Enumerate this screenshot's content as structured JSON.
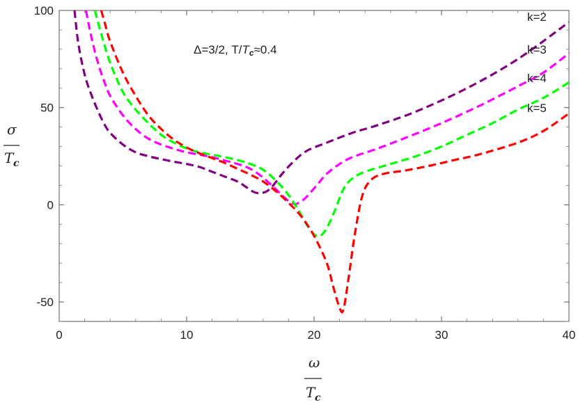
{
  "chart_data": {
    "type": "line",
    "title": "",
    "annotation": {
      "prefix": "Δ=3/2,  T/",
      "t_sym": "T",
      "t_sub": "c",
      "suffix": "≈0.4"
    },
    "xlabel": {
      "numerator": "ω",
      "denominator": "T",
      "denominator_sub": "c"
    },
    "ylabel": {
      "numerator": "σ",
      "denominator": "T",
      "denominator_sub": "c"
    },
    "xlim": [
      0,
      40
    ],
    "ylim": [
      -60,
      100
    ],
    "xticks": [
      0,
      10,
      20,
      30,
      40
    ],
    "xtick_labels": [
      "0",
      "10",
      "20",
      "30",
      "40"
    ],
    "yticks": [
      -50,
      0,
      50,
      100
    ],
    "ytick_labels": [
      "-50",
      "0",
      "50",
      "100"
    ],
    "grid": false,
    "line_style": "dashed",
    "series": [
      {
        "name": "k=2",
        "color": "#800080",
        "points": [
          [
            1.2,
            100
          ],
          [
            1.5,
            83
          ],
          [
            2,
            67
          ],
          [
            2.5,
            57
          ],
          [
            3,
            49
          ],
          [
            3.5,
            42
          ],
          [
            4,
            37
          ],
          [
            5,
            31
          ],
          [
            6,
            27
          ],
          [
            7,
            25
          ],
          [
            8,
            23.5
          ],
          [
            9,
            22.2
          ],
          [
            10,
            21
          ],
          [
            11,
            19.5
          ],
          [
            12,
            17
          ],
          [
            13,
            14.5
          ],
          [
            14,
            12
          ],
          [
            14.7,
            9
          ],
          [
            15.3,
            6.5
          ],
          [
            15.8,
            6
          ],
          [
            16.3,
            7
          ],
          [
            16.8,
            10
          ],
          [
            17.5,
            16
          ],
          [
            18.5,
            23
          ],
          [
            19.5,
            28
          ],
          [
            21,
            32
          ],
          [
            23,
            37
          ],
          [
            25,
            41
          ],
          [
            28,
            48
          ],
          [
            32,
            60
          ],
          [
            36,
            75
          ],
          [
            40,
            94
          ]
        ]
      },
      {
        "name": "k=3",
        "color": "#ff00ff",
        "points": [
          [
            2.1,
            100
          ],
          [
            2.5,
            87
          ],
          [
            3,
            74
          ],
          [
            3.5,
            64
          ],
          [
            4,
            56
          ],
          [
            5,
            46
          ],
          [
            6,
            39
          ],
          [
            7,
            34
          ],
          [
            8,
            31
          ],
          [
            9,
            28.8
          ],
          [
            10,
            27
          ],
          [
            11,
            25.8
          ],
          [
            12,
            24.5
          ],
          [
            13,
            22.8
          ],
          [
            14,
            21
          ],
          [
            15,
            18.5
          ],
          [
            16,
            14
          ],
          [
            17,
            8
          ],
          [
            17.8,
            3
          ],
          [
            18.4,
            0.5
          ],
          [
            18.8,
            1
          ],
          [
            19.4,
            4
          ],
          [
            20.2,
            10
          ],
          [
            21,
            16
          ],
          [
            22,
            21
          ],
          [
            23,
            24.5
          ],
          [
            25,
            29
          ],
          [
            27,
            34
          ],
          [
            30,
            42
          ],
          [
            33,
            51
          ],
          [
            36,
            61
          ],
          [
            38,
            68
          ],
          [
            40,
            78
          ]
        ]
      },
      {
        "name": "k=4",
        "color": "#00ff00",
        "points": [
          [
            2.8,
            100
          ],
          [
            3.3,
            88
          ],
          [
            4,
            73
          ],
          [
            5,
            58
          ],
          [
            6,
            49
          ],
          [
            7,
            42
          ],
          [
            8,
            36
          ],
          [
            9,
            32
          ],
          [
            10,
            29
          ],
          [
            11,
            27
          ],
          [
            12,
            25.8
          ],
          [
            13,
            24.5
          ],
          [
            14,
            23
          ],
          [
            15,
            21
          ],
          [
            16,
            18
          ],
          [
            17,
            12.5
          ],
          [
            18,
            5
          ],
          [
            18.8,
            -3
          ],
          [
            19.5,
            -11
          ],
          [
            20.2,
            -16
          ],
          [
            20.8,
            -14
          ],
          [
            21.5,
            -5
          ],
          [
            22.3,
            8
          ],
          [
            23,
            13.5
          ],
          [
            24,
            17
          ],
          [
            26,
            21
          ],
          [
            28,
            25
          ],
          [
            30,
            30
          ],
          [
            32,
            36
          ],
          [
            34,
            42
          ],
          [
            36,
            49
          ],
          [
            38,
            55
          ],
          [
            40,
            63
          ]
        ]
      },
      {
        "name": "k=5",
        "color": "#ff0000",
        "points": [
          [
            3.3,
            100
          ],
          [
            3.6,
            93
          ],
          [
            4,
            84
          ],
          [
            5,
            68
          ],
          [
            6,
            56
          ],
          [
            7,
            46
          ],
          [
            8,
            39
          ],
          [
            9,
            33.5
          ],
          [
            10,
            29.5
          ],
          [
            11,
            26.5
          ],
          [
            12,
            24
          ],
          [
            13,
            21.5
          ],
          [
            14,
            18.5
          ],
          [
            15,
            15.5
          ],
          [
            16,
            12
          ],
          [
            17,
            7
          ],
          [
            18,
            1
          ],
          [
            19,
            -6
          ],
          [
            20,
            -16
          ],
          [
            21,
            -30
          ],
          [
            21.5,
            -42
          ],
          [
            22,
            -53
          ],
          [
            22.3,
            -54
          ],
          [
            22.7,
            -38
          ],
          [
            23.2,
            -15
          ],
          [
            23.8,
            5
          ],
          [
            24.5,
            13
          ],
          [
            25.5,
            16
          ],
          [
            27,
            17.5
          ],
          [
            29,
            20
          ],
          [
            31,
            23
          ],
          [
            33,
            26
          ],
          [
            36,
            32
          ],
          [
            38,
            38
          ],
          [
            40,
            47
          ]
        ]
      }
    ],
    "series_labels": [
      "k=2",
      "k=3",
      "k=4",
      "k=5"
    ]
  }
}
